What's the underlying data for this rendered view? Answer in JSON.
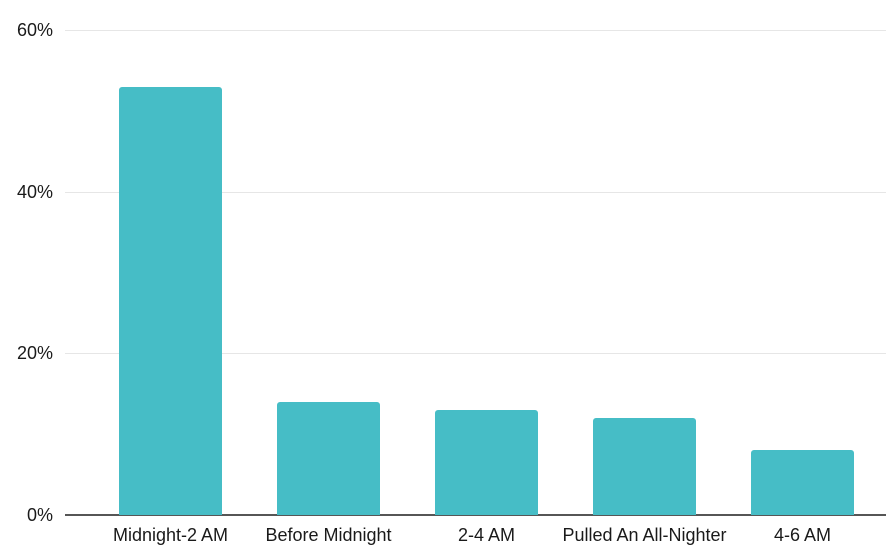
{
  "chart_data": {
    "type": "bar",
    "categories": [
      "Midnight-2 AM",
      "Before Midnight",
      "2-4 AM",
      "Pulled An All-Nighter",
      "4-6 AM"
    ],
    "values": [
      53,
      14,
      13,
      12,
      8
    ],
    "title": "",
    "xlabel": "",
    "ylabel": "",
    "ylim": [
      0,
      60
    ],
    "y_ticks": [
      {
        "value": 0,
        "label": "0%"
      },
      {
        "value": 20,
        "label": "20%"
      },
      {
        "value": 40,
        "label": "40%"
      },
      {
        "value": 60,
        "label": "60%"
      }
    ],
    "grid": true,
    "legend": "none",
    "bar_color": "#46bdc6",
    "gridline_color": "#e6e6e6",
    "axis_line_color": "#565656",
    "label_color": "#1a1a1a"
  }
}
